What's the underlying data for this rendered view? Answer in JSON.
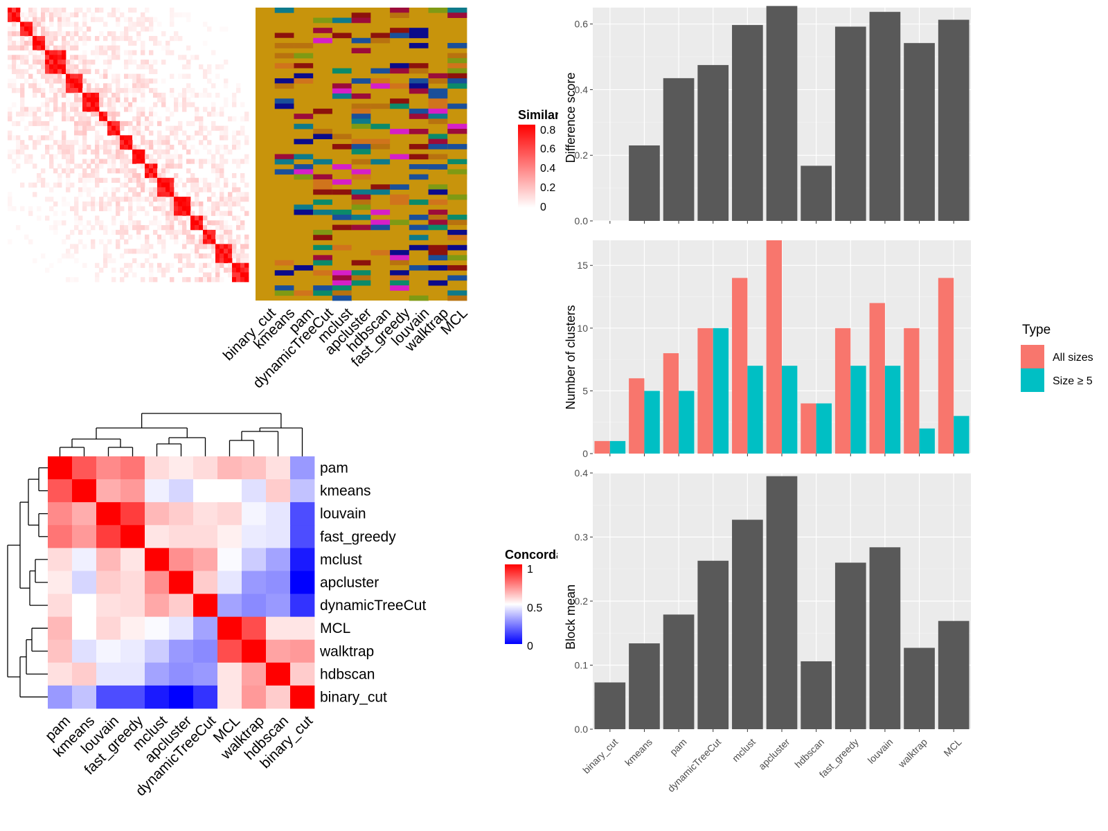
{
  "methods": [
    "binary_cut",
    "kmeans",
    "pam",
    "dynamicTreeCut",
    "mclust",
    "apcluster",
    "hdbscan",
    "fast_greedy",
    "louvain",
    "walktrap",
    "MCL"
  ],
  "similarity_legend": {
    "title": "Similarity",
    "ticks": [
      "0.8",
      "0.6",
      "0.4",
      "0.2",
      "0"
    ]
  },
  "concordance_legend": {
    "title": "Concordance",
    "ticks": [
      "1",
      "0.5",
      "0"
    ]
  },
  "type_legend": {
    "title": "Type",
    "items": [
      "All sizes",
      "Size ≥ 5"
    ]
  },
  "colors": {
    "bar": "#595959",
    "all_sizes": "#F8766D",
    "size5": "#00BFC4",
    "panel_bg": "#EBEBEB",
    "heat_red": "#FF0000"
  },
  "chart_data": [
    {
      "type": "bar",
      "title": "",
      "xlabel": "",
      "ylabel": "Difference score",
      "categories": [
        "binary_cut",
        "kmeans",
        "pam",
        "dynamicTreeCut",
        "mclust",
        "apcluster",
        "hdbscan",
        "fast_greedy",
        "louvain",
        "walktrap",
        "MCL"
      ],
      "values": [
        0,
        0.23,
        0.435,
        0.475,
        0.597,
        0.655,
        0.168,
        0.592,
        0.637,
        0.542,
        0.613
      ],
      "ylim": [
        0,
        0.65
      ],
      "yticks": [
        "0.0",
        "0.2",
        "0.4",
        "0.6"
      ],
      "grid": true
    },
    {
      "type": "bar",
      "title": "",
      "xlabel": "",
      "ylabel": "Number of clusters",
      "categories": [
        "binary_cut",
        "kmeans",
        "pam",
        "dynamicTreeCut",
        "mclust",
        "apcluster",
        "hdbscan",
        "fast_greedy",
        "louvain",
        "walktrap",
        "MCL"
      ],
      "series": [
        {
          "name": "All sizes",
          "values": [
            1,
            6,
            8,
            10,
            14,
            17,
            4,
            10,
            12,
            10,
            14
          ]
        },
        {
          "name": "Size ≥ 5",
          "values": [
            1,
            5,
            5,
            10,
            7,
            7,
            4,
            7,
            7,
            2,
            3
          ]
        }
      ],
      "ylim": [
        0,
        17
      ],
      "yticks": [
        "0",
        "5",
        "10",
        "15"
      ],
      "legend": "right",
      "grid": true
    },
    {
      "type": "bar",
      "title": "",
      "xlabel": "",
      "ylabel": "Block mean",
      "categories": [
        "binary_cut",
        "kmeans",
        "pam",
        "dynamicTreeCut",
        "mclust",
        "apcluster",
        "hdbscan",
        "fast_greedy",
        "louvain",
        "walktrap",
        "MCL"
      ],
      "values": [
        0.073,
        0.134,
        0.179,
        0.263,
        0.327,
        0.395,
        0.106,
        0.26,
        0.284,
        0.127,
        0.169
      ],
      "ylim": [
        0,
        0.4
      ],
      "yticks": [
        "0.0",
        "0.1",
        "0.2",
        "0.3",
        "0.4"
      ],
      "grid": true
    },
    {
      "type": "heatmap",
      "title": "",
      "row_labels": [
        "pam",
        "kmeans",
        "louvain",
        "fast_greedy",
        "mclust",
        "apcluster",
        "dynamicTreeCut",
        "MCL",
        "walktrap",
        "hdbscan",
        "binary_cut"
      ],
      "col_labels": [
        "pam",
        "kmeans",
        "louvain",
        "fast_greedy",
        "mclust",
        "apcluster",
        "dynamicTreeCut",
        "MCL",
        "walktrap",
        "hdbscan",
        "binary_cut"
      ],
      "legend_title": "Concordance",
      "values": [
        [
          1.0,
          0.83,
          0.73,
          0.77,
          0.57,
          0.54,
          0.57,
          0.64,
          0.62,
          0.56,
          0.3
        ],
        [
          0.83,
          1.0,
          0.66,
          0.7,
          0.47,
          0.42,
          0.5,
          0.5,
          0.44,
          0.6,
          0.38
        ],
        [
          0.73,
          0.66,
          1.0,
          0.88,
          0.64,
          0.6,
          0.56,
          0.58,
          0.48,
          0.45,
          0.15
        ],
        [
          0.77,
          0.7,
          0.88,
          1.0,
          0.55,
          0.57,
          0.57,
          0.53,
          0.46,
          0.45,
          0.15
        ],
        [
          0.57,
          0.47,
          0.64,
          0.55,
          1.0,
          0.72,
          0.67,
          0.49,
          0.4,
          0.32,
          0.05
        ],
        [
          0.54,
          0.42,
          0.6,
          0.57,
          0.72,
          1.0,
          0.6,
          0.45,
          0.3,
          0.28,
          0.0
        ],
        [
          0.57,
          0.5,
          0.56,
          0.57,
          0.67,
          0.6,
          1.0,
          0.32,
          0.27,
          0.3,
          0.1
        ],
        [
          0.64,
          0.5,
          0.58,
          0.53,
          0.49,
          0.45,
          0.32,
          1.0,
          0.85,
          0.55,
          0.55
        ],
        [
          0.62,
          0.44,
          0.48,
          0.46,
          0.4,
          0.3,
          0.27,
          0.85,
          1.0,
          0.68,
          0.7
        ],
        [
          0.56,
          0.6,
          0.45,
          0.45,
          0.32,
          0.28,
          0.3,
          0.55,
          0.68,
          1.0,
          0.6
        ],
        [
          0.3,
          0.38,
          0.15,
          0.15,
          0.05,
          0.0,
          0.1,
          0.55,
          0.7,
          0.6,
          1.0
        ]
      ]
    }
  ]
}
